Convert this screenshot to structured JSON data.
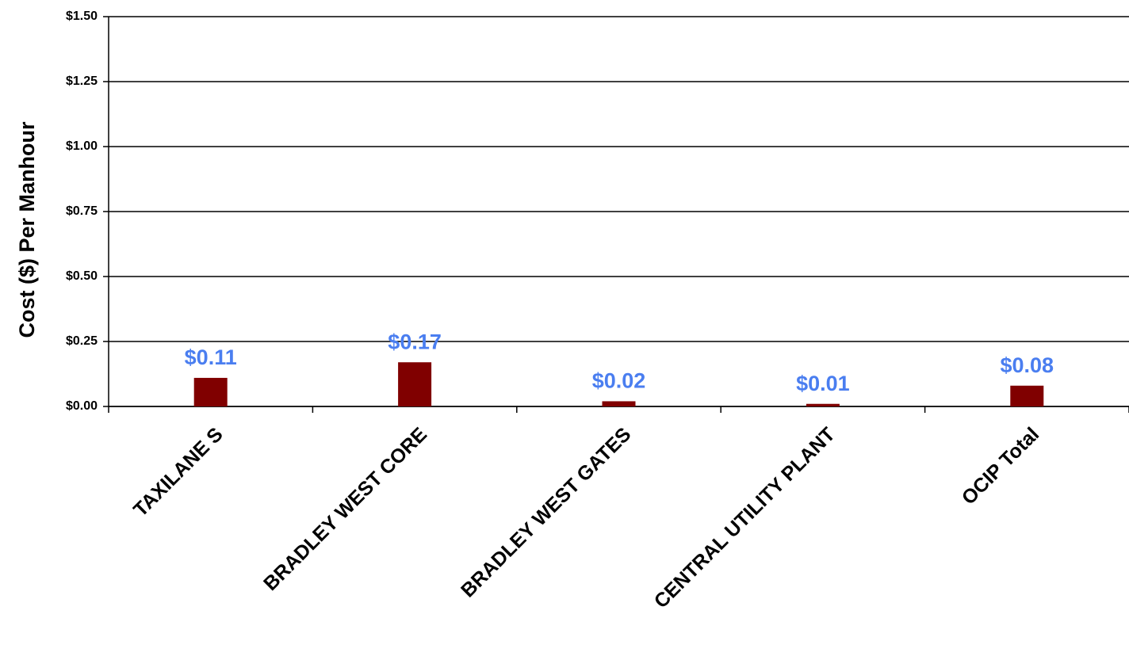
{
  "chart_data": {
    "type": "bar",
    "y_label": "Cost ($) Per Manhour",
    "categories": [
      "TAXILANE S",
      "BRADLEY WEST CORE",
      "BRADLEY WEST GATES",
      "CENTRAL UTILITY PLANT",
      "OCIP Total"
    ],
    "values": [
      0.11,
      0.17,
      0.02,
      0.01,
      0.08
    ],
    "value_labels": [
      "$0.11",
      "$0.17",
      "$0.02",
      "$0.01",
      "$0.08"
    ],
    "color": "#800000",
    "label_color": "#4a7ef0",
    "ylim": [
      0,
      1.5
    ],
    "yticks": [
      {
        "value": 0,
        "label": "$0.00"
      },
      {
        "value": 0.25,
        "label": "$0.25"
      },
      {
        "value": 0.5,
        "label": "$0.50"
      },
      {
        "value": 0.75,
        "label": "$0.75"
      },
      {
        "value": 1,
        "label": "$1.00"
      },
      {
        "value": 1.25,
        "label": "$1.25"
      },
      {
        "value": 1.5,
        "label": "$1.50"
      }
    ],
    "grid": true
  }
}
